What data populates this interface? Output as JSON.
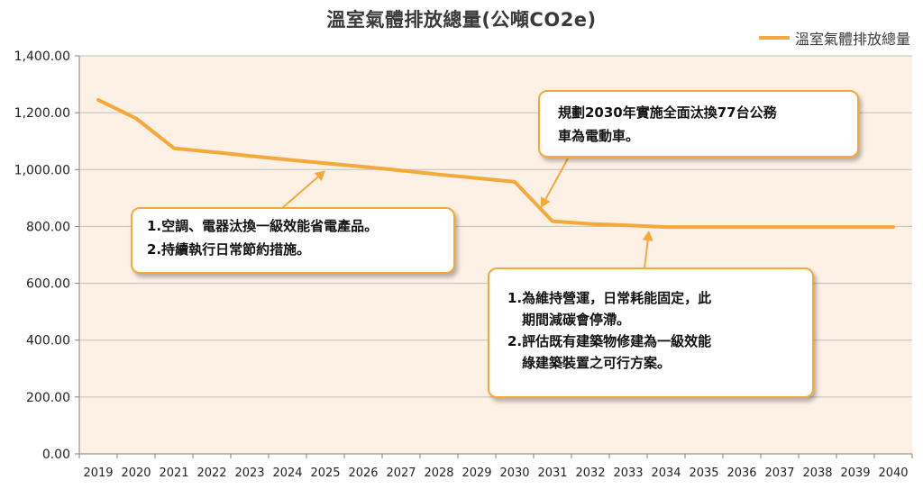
{
  "chart_data": {
    "type": "line",
    "title": "溫室氣體排放總量(公噸CO2e)",
    "x": [
      "2019",
      "2020",
      "2021",
      "2022",
      "2023",
      "2024",
      "2025",
      "2026",
      "2027",
      "2028",
      "2029",
      "2030",
      "2031",
      "2032",
      "2033",
      "2034",
      "2035",
      "2036",
      "2037",
      "2038",
      "2039",
      "2040"
    ],
    "series": [
      {
        "name": "溫室氣體排放總量",
        "color": "#f5a93a",
        "values": [
          1245,
          1180,
          1075,
          1062,
          1048,
          1035,
          1022,
          1010,
          997,
          983,
          970,
          957,
          818,
          809,
          804,
          798,
          798,
          798,
          798,
          798,
          798,
          798
        ]
      }
    ],
    "ylim": [
      0,
      1400
    ],
    "yticks": [
      0,
      200,
      400,
      600,
      800,
      1000,
      1200,
      1400
    ],
    "ytick_labels": [
      "0.00",
      "200.00",
      "400.00",
      "600.00",
      "800.00",
      "1,000.00",
      "1,200.00",
      "1,400.00"
    ],
    "grid": true,
    "legend_position": "top-right",
    "colors": {
      "line": "#f5a93a",
      "plot_bg": "#fdf0e5",
      "grid": "#bfbfbf"
    }
  },
  "callouts": [
    {
      "lines": [
        "1.空調、電器汰換一級效能省電產品。",
        "2.持續執行日常節約措施。"
      ],
      "target_year": "2025"
    },
    {
      "lines": [
        "規劃2030年實施全面汰換77台公務",
        "車為電動車。"
      ],
      "target_year": "2031"
    },
    {
      "lines": [
        "1.為維持營運，日常耗能固定，此",
        "期間減碳會停滯。",
        "2.評估既有建築物修建為一級效能",
        "綠建築裝置之可行方案。"
      ],
      "target_year": "2034"
    }
  ]
}
